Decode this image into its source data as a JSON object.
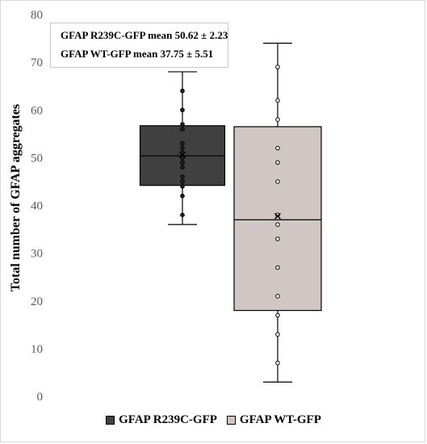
{
  "chart_data": {
    "type": "box",
    "ylabel": "Total number of GFAP aggregates",
    "ylim": [
      0,
      80
    ],
    "yticks": [
      0,
      10,
      20,
      30,
      40,
      50,
      60,
      70,
      80
    ],
    "grid": false,
    "legend_position": "bottom",
    "annotations": [
      {
        "label": "GFAP R239C-GFP  mean",
        "value": "50.62",
        "pm": "2.23"
      },
      {
        "label": "GFAP WT-GFP mean",
        "value": "37.75",
        "pm": "5.51"
      }
    ],
    "series": [
      {
        "name": "GFAP R239C-GFP",
        "color": "#404040",
        "min": 36,
        "q1": 44.2,
        "median": 50.4,
        "q3": 56.7,
        "max": 68,
        "mean": 50.62,
        "points": [
          64,
          60,
          57,
          56,
          53,
          52,
          51,
          50,
          49,
          48,
          46,
          45,
          44,
          42,
          38
        ]
      },
      {
        "name": "GFAP WT-GFP",
        "color": "#d0c7c4",
        "min": 3,
        "q1": 18,
        "median": 37,
        "q3": 56.5,
        "max": 74,
        "mean": 37.75,
        "points": [
          69,
          62,
          58,
          52,
          49,
          45,
          38,
          36,
          33,
          27,
          21,
          17,
          13,
          7
        ]
      }
    ]
  }
}
